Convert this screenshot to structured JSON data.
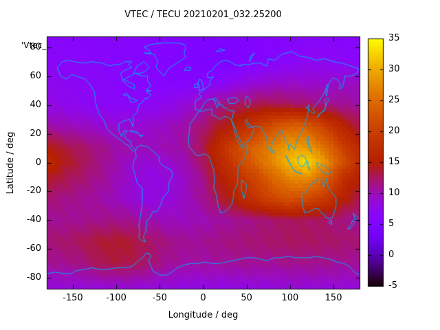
{
  "title": "VTEC / TECU 20210201_032.25200",
  "legend_key": "'Vtec_",
  "axes": {
    "x_label": "Longitude / deg",
    "y_label": "Latitude / deg",
    "x_ticks": [
      -150,
      -100,
      -50,
      0,
      50,
      100,
      150
    ],
    "y_ticks": [
      80,
      60,
      40,
      20,
      0,
      -20,
      -40,
      -60,
      -80
    ],
    "x_range": [
      -180,
      180
    ],
    "y_range": [
      -87.5,
      87.5
    ]
  },
  "colorbar": {
    "ticks": [
      35,
      30,
      25,
      20,
      15,
      10,
      5,
      0,
      -5
    ],
    "range": [
      -5,
      35
    ],
    "palette": "pm3d-traditional black-violet-red-yellow"
  },
  "colors": {
    "coastline": "#00aaff",
    "axis": "#000000",
    "background": "#ffffff"
  },
  "chart_data": {
    "type": "heatmap",
    "title": "VTEC / TECU 20210201_032.25200",
    "xlabel": "Longitude / deg",
    "ylabel": "Latitude / deg",
    "value_unit": "TECU",
    "value_range": [
      -5,
      35
    ],
    "x": [
      -180,
      -160,
      -140,
      -120,
      -100,
      -80,
      -60,
      -40,
      -20,
      0,
      20,
      40,
      60,
      80,
      100,
      120,
      140,
      160,
      180
    ],
    "y": [
      87.5,
      70,
      55,
      40,
      25,
      10,
      0,
      -10,
      -25,
      -40,
      -55,
      -70,
      -87.5
    ],
    "values": [
      [
        6,
        6,
        6,
        6,
        6,
        6,
        5.8,
        5.5,
        5.2,
        5,
        5,
        5,
        5.2,
        5.5,
        5.8,
        6,
        6,
        6,
        6
      ],
      [
        6.5,
        6.5,
        6.5,
        6.3,
        6,
        6,
        5.8,
        5.5,
        5,
        4.6,
        4.6,
        5,
        5.5,
        6,
        6.5,
        7,
        7,
        6.8,
        6.5
      ],
      [
        7.5,
        7,
        6.8,
        6.5,
        6.3,
        6,
        6,
        5.8,
        5.8,
        6,
        6.5,
        7.5,
        8.5,
        9,
        9.2,
        9,
        9,
        9.3,
        9.5
      ],
      [
        8,
        7.5,
        7,
        6.8,
        6.5,
        6.8,
        7,
        7.5,
        8.5,
        10,
        11.5,
        12.5,
        13,
        13,
        12.5,
        12,
        11.5,
        11,
        10.5
      ],
      [
        10.5,
        10,
        9.5,
        9,
        8.8,
        8.8,
        9,
        9.5,
        10.5,
        12,
        14,
        16.5,
        19,
        22,
        24,
        23.5,
        20,
        16,
        13
      ],
      [
        15,
        13.5,
        12.5,
        11.5,
        10.5,
        10,
        9.8,
        10,
        10.8,
        13,
        17.5,
        21.5,
        24.5,
        27,
        29.5,
        29,
        25.5,
        20.5,
        16.5
      ],
      [
        16.5,
        14.5,
        13,
        11.5,
        10.2,
        9,
        8.6,
        9,
        10,
        12.5,
        16.5,
        20.5,
        24,
        27.5,
        31,
        33.4,
        28.5,
        22.5,
        17.5
      ],
      [
        14.5,
        13.2,
        12.3,
        11.3,
        10,
        8.6,
        8,
        8.4,
        9.4,
        11.5,
        15,
        18,
        21,
        24.5,
        27.5,
        28.5,
        24.5,
        18.5,
        15
      ],
      [
        12,
        11.5,
        11,
        10.5,
        9.6,
        8.6,
        8,
        8.4,
        9.4,
        11,
        13.5,
        16,
        18.5,
        21,
        22.5,
        21.5,
        19.5,
        15.5,
        13
      ],
      [
        11,
        11,
        11,
        11.3,
        11.3,
        11,
        10.2,
        9.6,
        9.6,
        10,
        10.5,
        11,
        11.5,
        12,
        12.5,
        12.5,
        12.2,
        11.6,
        11.2
      ],
      [
        12,
        12.2,
        12.8,
        13.6,
        14,
        13.6,
        12.4,
        11.5,
        11,
        11,
        11.5,
        11.8,
        12,
        12.3,
        12.5,
        12.5,
        12.4,
        12.2,
        12
      ],
      [
        11,
        11.2,
        11.6,
        12.8,
        13.4,
        13,
        12,
        11,
        10.6,
        10.6,
        10.8,
        11,
        11,
        11,
        11.3,
        11.3,
        11.2,
        11,
        11
      ],
      [
        8.5,
        8.5,
        8.5,
        8.5,
        8.5,
        8.5,
        8.4,
        8.2,
        8,
        8,
        8,
        8,
        8.2,
        8.3,
        8.5,
        8.5,
        8.5,
        8.5,
        8.5
      ]
    ],
    "peak": {
      "lon": 118,
      "lat": 2,
      "value": 33.5
    }
  },
  "coastlines": [
    [
      -168,
      66,
      -164,
      60,
      -158,
      58,
      -151,
      61,
      -146,
      60,
      -136,
      58,
      -130,
      54,
      -125,
      49,
      -124,
      42,
      -120,
      34,
      -114,
      29,
      -110,
      23,
      -105,
      20,
      -96,
      16,
      -93,
      15,
      -90,
      13,
      -86,
      12,
      -83,
      9,
      -80,
      8,
      -78,
      9,
      -82,
      11,
      -84,
      15,
      -88,
      16,
      -91,
      19,
      -87,
      22,
      -91,
      22,
      -94,
      18,
      -97,
      22,
      -97,
      27,
      -91,
      29,
      -84,
      30,
      -81,
      25,
      -80,
      28,
      -81,
      32,
      -76,
      35,
      -74,
      40,
      -70,
      42,
      -66,
      45,
      -65,
      44,
      -60,
      47,
      -65,
      49,
      -60,
      50,
      -66,
      50,
      -60,
      53,
      -64,
      57,
      -64,
      60,
      -70,
      60,
      -78,
      62,
      -93,
      57,
      -86,
      53,
      -82,
      52,
      -79,
      51,
      -79,
      54,
      -86,
      56,
      -93,
      58,
      -95,
      62,
      -90,
      64,
      -82,
      66,
      -86,
      68,
      -82,
      70,
      -90,
      70,
      -96,
      68,
      -102,
      68,
      -108,
      67,
      -116,
      69,
      -128,
      70,
      -136,
      69,
      -148,
      70,
      -156,
      71,
      -162,
      70,
      -168,
      66
    ],
    [
      -45,
      60,
      -53,
      65,
      -54,
      67,
      -52,
      70,
      -56,
      75,
      -68,
      76,
      -60,
      76,
      -62,
      78,
      -68,
      80,
      -60,
      82,
      -45,
      83,
      -30,
      83,
      -22,
      82,
      -20,
      80,
      -22,
      76,
      -20,
      73,
      -25,
      71,
      -33,
      68,
      -40,
      65,
      -43,
      62,
      -45,
      60
    ],
    [
      -78,
      8,
      -76,
      11,
      -72,
      12,
      -64,
      11,
      -60,
      9,
      -54,
      6,
      -51,
      4,
      -50,
      0,
      -44,
      -3,
      -37,
      -5,
      -35,
      -9,
      -39,
      -13,
      -40,
      -20,
      -47,
      -25,
      -48,
      -28,
      -53,
      -34,
      -58,
      -34,
      -62,
      -39,
      -65,
      -40,
      -65,
      -45,
      -67,
      -46,
      -65,
      -47,
      -68,
      -50,
      -69,
      -52,
      -66,
      -55,
      -71,
      -54,
      -74,
      -52,
      -73,
      -47,
      -74,
      -44,
      -73,
      -40,
      -71,
      -33,
      -70,
      -26,
      -70,
      -18,
      -76,
      -14,
      -79,
      -7,
      -81,
      -4,
      -80,
      1,
      -77,
      4,
      -78,
      8
    ],
    [
      -6,
      35,
      -10,
      31,
      -15,
      27,
      -16,
      21,
      -17,
      15,
      -16,
      11,
      -12,
      8,
      -8,
      5,
      -4,
      5,
      2,
      6,
      7,
      4,
      9,
      0,
      12,
      -5,
      13,
      -12,
      12,
      -17,
      15,
      -22,
      17,
      -29,
      20,
      -35,
      25,
      -34,
      27,
      -33,
      33,
      -29,
      35,
      -23,
      35,
      -20,
      39,
      -16,
      40,
      -10,
      40,
      -3,
      44,
      0,
      48,
      3,
      51,
      10,
      51,
      12,
      44,
      10,
      43,
      12,
      40,
      14,
      38,
      18,
      36,
      22,
      34,
      27,
      32,
      30,
      30,
      31,
      25,
      32,
      19,
      30,
      15,
      32,
      10,
      33,
      10,
      37,
      6,
      37,
      1,
      36,
      -6,
      35
    ],
    [
      -9,
      37,
      -9,
      43,
      -2,
      45,
      -5,
      48,
      0,
      50,
      4,
      52,
      8,
      54,
      8,
      57,
      12,
      60,
      10,
      59,
      5,
      59,
      5,
      62,
      10,
      64,
      14,
      67,
      20,
      70,
      26,
      71,
      31,
      70,
      36,
      68,
      44,
      67,
      44,
      68,
      52,
      68,
      60,
      69,
      66,
      69,
      73,
      67,
      75,
      72,
      82,
      71,
      90,
      75,
      102,
      77,
      110,
      74,
      120,
      73,
      130,
      71,
      140,
      72,
      150,
      70,
      160,
      69,
      170,
      67,
      179,
      65,
      177,
      62,
      170,
      60,
      163,
      60,
      162,
      56,
      160,
      52,
      157,
      51,
      158,
      55,
      155,
      57,
      150,
      59,
      143,
      54,
      138,
      47,
      134,
      43,
      128,
      39,
      126,
      37,
      129,
      35,
      126,
      34,
      122,
      37,
      118,
      38,
      122,
      40,
      120,
      32,
      114,
      22,
      109,
      17,
      106,
      11,
      105,
      9,
      100,
      13,
      99,
      8,
      98,
      12,
      94,
      16,
      91,
      22,
      88,
      22,
      86,
      20,
      80,
      14,
      77,
      8,
      74,
      12,
      73,
      18,
      70,
      21,
      66,
      25,
      61,
      25,
      57,
      25,
      53,
      26,
      50,
      30,
      48,
      29,
      50,
      26,
      53,
      24,
      58,
      25,
      58,
      22,
      55,
      18,
      52,
      15,
      45,
      12,
      43,
      15,
      40,
      19,
      37,
      24,
      34,
      28,
      32,
      30,
      34,
      31,
      34,
      33,
      36,
      36,
      30,
      36,
      27,
      38,
      23,
      38,
      22,
      40,
      19,
      40,
      19,
      42,
      14,
      45,
      12,
      44,
      16,
      42,
      18,
      40,
      16,
      38,
      15,
      40,
      12,
      44,
      8,
      44,
      4,
      43,
      0,
      40,
      -2,
      37,
      -5,
      36,
      -9,
      37
    ],
    [
      -5,
      50,
      -4,
      53,
      -6,
      55,
      -4,
      58,
      -2,
      57,
      0,
      53,
      1,
      51,
      -5,
      50
    ],
    [
      -10,
      52,
      -10,
      54,
      -6,
      55,
      -6,
      52,
      -10,
      52
    ],
    [
      -22,
      64,
      -19,
      66,
      -14,
      66,
      -15,
      64,
      -22,
      64
    ],
    [
      -85,
      22,
      -78,
      22,
      -74,
      20,
      -80,
      21,
      -85,
      22
    ],
    [
      -74,
      19,
      -69,
      19,
      -71,
      18,
      -74,
      19
    ],
    [
      -80,
      62,
      -76,
      67,
      -68,
      70,
      -62,
      66,
      -67,
      63,
      -73,
      62,
      -80,
      62
    ],
    [
      44,
      -12,
      48,
      -14,
      50,
      -16,
      47,
      -25,
      44,
      -19,
      44,
      -12
    ],
    [
      80,
      9,
      82,
      7,
      81,
      6,
      79,
      7,
      80,
      9
    ],
    [
      131,
      31,
      134,
      34,
      137,
      35,
      140,
      36,
      141,
      40,
      140,
      43,
      143,
      45,
      145,
      44,
      142,
      41,
      140,
      37,
      135,
      34,
      131,
      31
    ],
    [
      142,
      46,
      143,
      49,
      144,
      54,
      142,
      53,
      141,
      48,
      142,
      46
    ],
    [
      95,
      5,
      98,
      1,
      103,
      -4,
      106,
      -6,
      102,
      -3,
      97,
      3,
      95,
      5
    ],
    [
      105,
      -6,
      110,
      -7,
      114,
      -8,
      109,
      -7,
      105,
      -6
    ],
    [
      109,
      1,
      110,
      4,
      114,
      5,
      117,
      4,
      119,
      1,
      116,
      -2,
      113,
      -3,
      110,
      -1,
      109,
      1
    ],
    [
      119,
      1,
      121,
      0,
      122,
      -3,
      123,
      -5,
      120,
      -3,
      119,
      1
    ],
    [
      131,
      0,
      134,
      -1,
      138,
      -2,
      141,
      -3,
      145,
      -5,
      147,
      -7,
      143,
      -8,
      138,
      -7,
      134,
      -4,
      131,
      -2,
      131,
      0
    ],
    [
      120,
      18,
      122,
      18,
      121,
      13,
      124,
      11,
      125,
      7,
      123,
      8,
      121,
      12,
      119,
      15,
      120,
      18
    ],
    [
      113,
      -22,
      114,
      -26,
      115,
      -31,
      117,
      -35,
      122,
      -34,
      129,
      -32,
      133,
      -32,
      136,
      -35,
      139,
      -36,
      141,
      -38,
      146,
      -39,
      149,
      -38,
      151,
      -34,
      153,
      -30,
      153,
      -25,
      150,
      -22,
      146,
      -19,
      143,
      -15,
      142,
      -11,
      139,
      -17,
      136,
      -12,
      132,
      -11,
      129,
      -14,
      125,
      -14,
      122,
      -17,
      117,
      -21,
      113,
      -22
    ],
    [
      145,
      -41,
      148,
      -40,
      148,
      -43,
      145,
      -42,
      145,
      -41
    ],
    [
      173,
      -35,
      176,
      -37,
      178,
      -38,
      175,
      -41,
      173,
      -35
    ],
    [
      172,
      -40,
      174,
      -42,
      169,
      -46,
      166,
      -46,
      170,
      -43,
      172,
      -40
    ],
    [
      -180,
      -77,
      -170,
      -76,
      -160,
      -77,
      -152,
      -77,
      -146,
      -75,
      -136,
      -74,
      -128,
      -73,
      -120,
      -74,
      -110,
      -74,
      -100,
      -73,
      -90,
      -73,
      -82,
      -72,
      -76,
      -69,
      -70,
      -66,
      -66,
      -63,
      -62,
      -63,
      -60,
      -65,
      -63,
      -68,
      -60,
      -72,
      -58,
      -75,
      -50,
      -78,
      -42,
      -78,
      -36,
      -76,
      -30,
      -73,
      -22,
      -71,
      -14,
      -70,
      -6,
      -70,
      2,
      -69,
      10,
      -70,
      18,
      -70,
      26,
      -69,
      34,
      -68,
      42,
      -67,
      50,
      -66,
      58,
      -66,
      66,
      -67,
      74,
      -68,
      82,
      -66,
      90,
      -66,
      98,
      -65,
      106,
      -66,
      114,
      -66,
      122,
      -66,
      130,
      -65,
      138,
      -66,
      146,
      -67,
      154,
      -69,
      162,
      -70,
      168,
      -72,
      174,
      -76,
      180,
      -78
    ],
    [
      28,
      44,
      33,
      45,
      38,
      45,
      41,
      43,
      36,
      41,
      30,
      41,
      28,
      44
    ],
    [
      50,
      46,
      54,
      44,
      54,
      41,
      52,
      38,
      49,
      40,
      48,
      44,
      50,
      46
    ],
    [
      -92,
      47,
      -86,
      46,
      -83,
      42,
      -79,
      42,
      -76,
      43,
      -79,
      44,
      -84,
      45,
      -88,
      48,
      -92,
      47
    ],
    [
      53,
      70,
      56,
      73,
      59,
      76,
      55,
      74,
      53,
      70
    ],
    [
      15,
      77,
      20,
      79,
      25,
      78,
      18,
      77,
      15,
      77
    ]
  ]
}
